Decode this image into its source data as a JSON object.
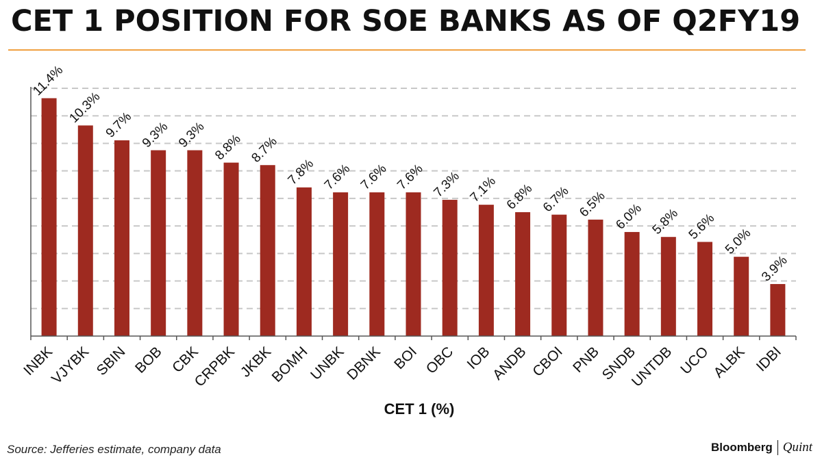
{
  "title": "CET 1 POSITION FOR SOE BANKS AS OF Q2FY19",
  "source": "Source: Jefferies estimate, company data",
  "brand": {
    "main": "Bloomberg",
    "sub": "Quint"
  },
  "colors": {
    "bar": "#9e2a20",
    "accent_rule": "#f0a040",
    "grid": "#c8c8c8"
  },
  "chart_data": {
    "type": "bar",
    "title": "CET 1 POSITION FOR SOE BANKS AS OF Q2FY19",
    "xlabel": "CET 1 (%)",
    "ylabel": "",
    "categories": [
      "INBK",
      "VJYBK",
      "SBIN",
      "BOB",
      "CBK",
      "CRPBK",
      "JKBK",
      "BOMH",
      "UNBK",
      "DBNK",
      "BOI",
      "OBC",
      "IOB",
      "ANDB",
      "CBOI",
      "PNB",
      "SNDB",
      "UNTDB",
      "UCO",
      "ALBK",
      "IDBI"
    ],
    "values": [
      11.4,
      10.3,
      9.7,
      9.3,
      9.3,
      8.8,
      8.7,
      7.8,
      7.6,
      7.6,
      7.6,
      7.3,
      7.1,
      6.8,
      6.7,
      6.5,
      6.0,
      5.8,
      5.6,
      5.0,
      3.9
    ],
    "data_labels": [
      "11.4%",
      "10.3%",
      "9.7%",
      "9.3%",
      "9.3%",
      "8.8%",
      "8.7%",
      "7.8%",
      "7.6%",
      "7.6%",
      "7.6%",
      "7.3%",
      "7.1%",
      "6.8%",
      "6.7%",
      "6.5%",
      "6.0%",
      "5.8%",
      "5.6%",
      "5.0%",
      "3.9%"
    ],
    "ylim": [
      1.8,
      11.8
    ],
    "grid": true,
    "legend": "none"
  }
}
